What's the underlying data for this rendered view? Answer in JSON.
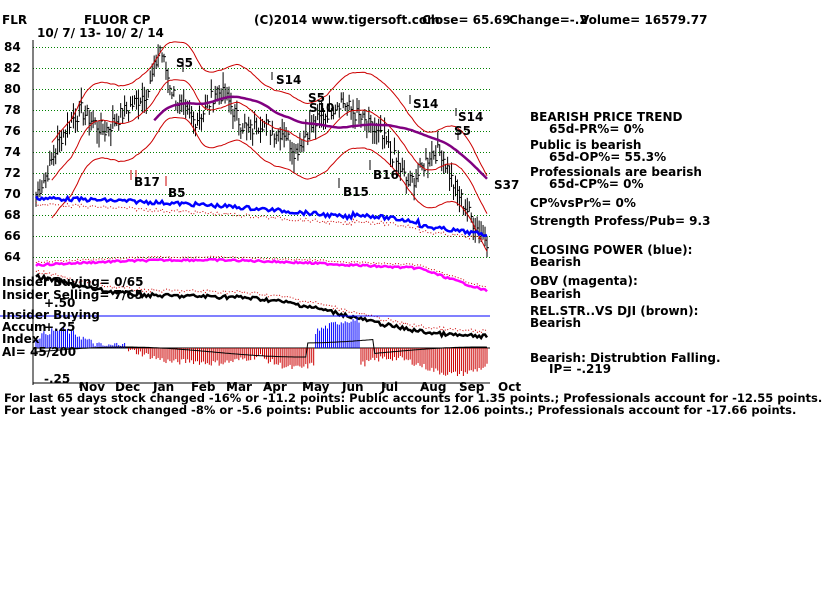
{
  "header": {
    "ticker": "FLR",
    "company": "FLUOR CP",
    "dates": "10/ 7/ 13- 10/ 2/ 14",
    "copyright": "(C)2014 www.tigersoft.com",
    "close": "Close=  65.69",
    "change": "Change=-.2",
    "volume": "Volume= 16579.77"
  },
  "chart_data": {
    "type": "line",
    "y_ticks": [
      "84",
      "82",
      "80",
      "78",
      "76",
      "74",
      "72",
      "70",
      "68",
      "66",
      "64"
    ],
    "y_range": [
      63,
      85
    ],
    "months": [
      "Nov",
      "Dec",
      "Jan",
      "Feb",
      "Mar",
      "Apr",
      "May",
      "Jun",
      "Jul",
      "Aug",
      "Sep",
      "Oct"
    ],
    "signals": [
      {
        "label": "S5",
        "color": "#000000"
      },
      {
        "label": "S14",
        "color": "#000000"
      },
      {
        "label": "S5",
        "color": "#000000"
      },
      {
        "label": "S10",
        "color": "#000000"
      },
      {
        "label": "S14",
        "color": "#000000"
      },
      {
        "label": "S14",
        "color": "#000000"
      },
      {
        "label": "S5",
        "color": "#000000"
      },
      {
        "label": "S37",
        "color": "#000000"
      },
      {
        "label": "B16",
        "color": "#000000"
      },
      {
        "label": "B15",
        "color": "#000000"
      },
      {
        "label": "B5",
        "color": "#000000"
      },
      {
        "label": "B17",
        "color": "#cc0000"
      }
    ],
    "series": [
      {
        "name": "Closing Power",
        "color": "#0000ff"
      },
      {
        "name": "OBV",
        "color": "#ff00ff"
      },
      {
        "name": "REL.STR..VS DJI",
        "color": "#000000"
      }
    ],
    "price_close": [
      70,
      72,
      75,
      77,
      78,
      77,
      76,
      77,
      78,
      79,
      80,
      84,
      80,
      78,
      77,
      78,
      80,
      79,
      77,
      76,
      77,
      76,
      76,
      74,
      76,
      77,
      78,
      79,
      78,
      77,
      76,
      75,
      73,
      71,
      72,
      74,
      74,
      71,
      69,
      67,
      65.69
    ]
  },
  "insider": {
    "buying": "Insider Buying= 0/65",
    "selling": "Insider Selling= 7/65",
    "plus50": "+.50"
  },
  "accum": {
    "title1": "Insider Buying",
    "title2": "Accum",
    "title3": "Index",
    "ai": "AI= 45/200",
    "plus25": "+.25",
    "minus25": "-.25"
  },
  "indicators": {
    "trend_title": "BEARISH PRICE TREND",
    "pr": "65d-PR%= 0%",
    "public": "Public is bearish",
    "op": "65d-OP%= 55.3%",
    "professionals": "Professionals are bearish",
    "cp": "65d-CP%= 0%",
    "cpvspr": "CP%vsPr%=  0%",
    "strength": "Strength Profess/Pub= 9.3",
    "closing_power": "CLOSING POWER (blue):",
    "closing_power_val": "Bearish",
    "obv": "OBV (magenta):",
    "obv_val": "Bearish",
    "relstr": "REL.STR..VS DJI (brown):",
    "relstr_val": "Bearish",
    "distribution": "Bearish: Distrubtion Falling.",
    "ip": "IP= -.219"
  },
  "footer": {
    "line1": "For last 65 days stock changed -16% or -11.2 points:  Public accounts for  1.35 points.;  Professionals account for -12.55 points.",
    "line2": "For Last year stock changed -8% or -5.6 points:  Public accounts for  12.06 points.;  Professionals account for -17.66 points."
  }
}
